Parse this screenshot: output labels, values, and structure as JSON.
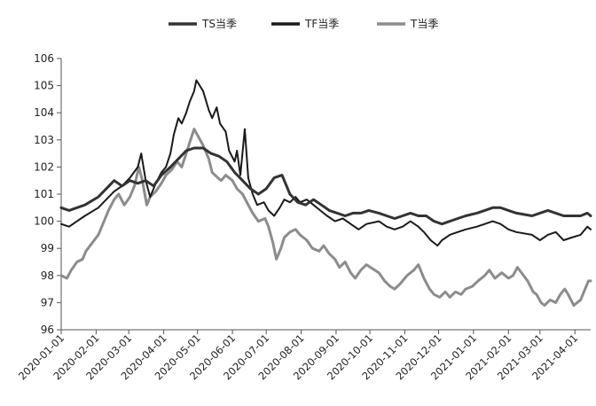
{
  "chart_data": {
    "type": "line",
    "title": "",
    "xlabel": "",
    "ylabel": "",
    "ylim": [
      96,
      106
    ],
    "yticks": [
      96,
      97,
      98,
      99,
      100,
      101,
      102,
      103,
      104,
      105,
      106
    ],
    "xlim": [
      "2020-01-01",
      "2021-04-15"
    ],
    "xticks": [
      "2020-01-01",
      "2020-02-01",
      "2020-03-01",
      "2020-04-01",
      "2020-05-01",
      "2020-06-01",
      "2020-07-01",
      "2020-08-01",
      "2020-09-01",
      "2020-10-01",
      "2020-11-01",
      "2020-12-01",
      "2021-01-01",
      "2021-02-01",
      "2021-03-01",
      "2021-04-01"
    ],
    "grid": false,
    "legend_position": "top",
    "series": [
      {
        "name": "TS当季",
        "color": "#333333",
        "width": 3,
        "points": [
          [
            "2020-01-01",
            100.5
          ],
          [
            "2020-01-08",
            100.4
          ],
          [
            "2020-01-15",
            100.5
          ],
          [
            "2020-01-22",
            100.6
          ],
          [
            "2020-02-03",
            100.9
          ],
          [
            "2020-02-10",
            101.2
          ],
          [
            "2020-02-17",
            101.5
          ],
          [
            "2020-02-24",
            101.3
          ],
          [
            "2020-03-02",
            101.5
          ],
          [
            "2020-03-09",
            101.4
          ],
          [
            "2020-03-16",
            101.5
          ],
          [
            "2020-03-23",
            101.3
          ],
          [
            "2020-03-30",
            101.7
          ],
          [
            "2020-04-07",
            102.0
          ],
          [
            "2020-04-14",
            102.3
          ],
          [
            "2020-04-21",
            102.6
          ],
          [
            "2020-04-28",
            102.7
          ],
          [
            "2020-05-06",
            102.7
          ],
          [
            "2020-05-13",
            102.5
          ],
          [
            "2020-05-20",
            102.4
          ],
          [
            "2020-05-27",
            102.2
          ],
          [
            "2020-06-03",
            101.8
          ],
          [
            "2020-06-10",
            101.5
          ],
          [
            "2020-06-17",
            101.2
          ],
          [
            "2020-06-24",
            101.0
          ],
          [
            "2020-07-01",
            101.2
          ],
          [
            "2020-07-08",
            101.6
          ],
          [
            "2020-07-15",
            101.7
          ],
          [
            "2020-07-22",
            101.0
          ],
          [
            "2020-07-29",
            100.7
          ],
          [
            "2020-08-05",
            100.6
          ],
          [
            "2020-08-12",
            100.8
          ],
          [
            "2020-08-19",
            100.6
          ],
          [
            "2020-08-26",
            100.4
          ],
          [
            "2020-09-02",
            100.3
          ],
          [
            "2020-09-09",
            100.2
          ],
          [
            "2020-09-16",
            100.3
          ],
          [
            "2020-09-23",
            100.3
          ],
          [
            "2020-09-30",
            100.4
          ],
          [
            "2020-10-09",
            100.3
          ],
          [
            "2020-10-16",
            100.2
          ],
          [
            "2020-10-23",
            100.1
          ],
          [
            "2020-10-30",
            100.2
          ],
          [
            "2020-11-06",
            100.3
          ],
          [
            "2020-11-13",
            100.2
          ],
          [
            "2020-11-20",
            100.2
          ],
          [
            "2020-11-27",
            100.0
          ],
          [
            "2020-12-04",
            99.9
          ],
          [
            "2020-12-11",
            100.0
          ],
          [
            "2020-12-18",
            100.1
          ],
          [
            "2020-12-25",
            100.2
          ],
          [
            "2021-01-04",
            100.3
          ],
          [
            "2021-01-11",
            100.4
          ],
          [
            "2021-01-18",
            100.5
          ],
          [
            "2021-01-25",
            100.5
          ],
          [
            "2021-02-01",
            100.4
          ],
          [
            "2021-02-08",
            100.3
          ],
          [
            "2021-02-22",
            100.2
          ],
          [
            "2021-03-01",
            100.3
          ],
          [
            "2021-03-08",
            100.4
          ],
          [
            "2021-03-15",
            100.3
          ],
          [
            "2021-03-22",
            100.2
          ],
          [
            "2021-03-29",
            100.2
          ],
          [
            "2021-04-06",
            100.2
          ],
          [
            "2021-04-12",
            100.3
          ],
          [
            "2021-04-15",
            100.2
          ]
        ]
      },
      {
        "name": "TF当季",
        "color": "#1a1a1a",
        "width": 2,
        "points": [
          [
            "2020-01-01",
            99.9
          ],
          [
            "2020-01-08",
            99.8
          ],
          [
            "2020-01-15",
            100.0
          ],
          [
            "2020-01-22",
            100.2
          ],
          [
            "2020-02-03",
            100.5
          ],
          [
            "2020-02-10",
            100.8
          ],
          [
            "2020-02-17",
            101.1
          ],
          [
            "2020-02-24",
            101.3
          ],
          [
            "2020-03-02",
            101.6
          ],
          [
            "2020-03-09",
            102.0
          ],
          [
            "2020-03-12",
            102.5
          ],
          [
            "2020-03-16",
            101.5
          ],
          [
            "2020-03-20",
            100.9
          ],
          [
            "2020-03-25",
            101.4
          ],
          [
            "2020-03-30",
            101.8
          ],
          [
            "2020-04-03",
            102.0
          ],
          [
            "2020-04-07",
            102.5
          ],
          [
            "2020-04-10",
            103.2
          ],
          [
            "2020-04-14",
            103.8
          ],
          [
            "2020-04-17",
            103.6
          ],
          [
            "2020-04-21",
            104.0
          ],
          [
            "2020-04-24",
            104.4
          ],
          [
            "2020-04-28",
            104.8
          ],
          [
            "2020-04-30",
            105.2
          ],
          [
            "2020-05-06",
            104.8
          ],
          [
            "2020-05-11",
            104.1
          ],
          [
            "2020-05-14",
            103.8
          ],
          [
            "2020-05-18",
            104.2
          ],
          [
            "2020-05-21",
            103.6
          ],
          [
            "2020-05-26",
            103.3
          ],
          [
            "2020-05-29",
            102.6
          ],
          [
            "2020-06-03",
            102.2
          ],
          [
            "2020-06-05",
            102.6
          ],
          [
            "2020-06-08",
            101.7
          ],
          [
            "2020-06-12",
            103.4
          ],
          [
            "2020-06-15",
            101.6
          ],
          [
            "2020-06-19",
            101.0
          ],
          [
            "2020-06-23",
            100.6
          ],
          [
            "2020-06-29",
            100.7
          ],
          [
            "2020-07-03",
            100.4
          ],
          [
            "2020-07-08",
            100.2
          ],
          [
            "2020-07-13",
            100.5
          ],
          [
            "2020-07-17",
            100.8
          ],
          [
            "2020-07-22",
            100.7
          ],
          [
            "2020-07-27",
            100.9
          ],
          [
            "2020-07-31",
            100.7
          ],
          [
            "2020-08-06",
            100.8
          ],
          [
            "2020-08-12",
            100.6
          ],
          [
            "2020-08-18",
            100.4
          ],
          [
            "2020-08-24",
            100.2
          ],
          [
            "2020-08-31",
            100.0
          ],
          [
            "2020-09-07",
            100.1
          ],
          [
            "2020-09-14",
            99.9
          ],
          [
            "2020-09-21",
            99.7
          ],
          [
            "2020-09-28",
            99.9
          ],
          [
            "2020-10-09",
            100.0
          ],
          [
            "2020-10-16",
            99.8
          ],
          [
            "2020-10-23",
            99.7
          ],
          [
            "2020-10-30",
            99.8
          ],
          [
            "2020-11-06",
            100.0
          ],
          [
            "2020-11-13",
            99.8
          ],
          [
            "2020-11-18",
            99.6
          ],
          [
            "2020-11-24",
            99.3
          ],
          [
            "2020-11-30",
            99.1
          ],
          [
            "2020-12-04",
            99.3
          ],
          [
            "2020-12-11",
            99.5
          ],
          [
            "2020-12-18",
            99.6
          ],
          [
            "2020-12-25",
            99.7
          ],
          [
            "2021-01-04",
            99.8
          ],
          [
            "2021-01-11",
            99.9
          ],
          [
            "2021-01-18",
            100.0
          ],
          [
            "2021-01-25",
            99.9
          ],
          [
            "2021-02-01",
            99.7
          ],
          [
            "2021-02-08",
            99.6
          ],
          [
            "2021-02-22",
            99.5
          ],
          [
            "2021-03-01",
            99.3
          ],
          [
            "2021-03-08",
            99.5
          ],
          [
            "2021-03-15",
            99.6
          ],
          [
            "2021-03-22",
            99.3
          ],
          [
            "2021-03-29",
            99.4
          ],
          [
            "2021-04-06",
            99.5
          ],
          [
            "2021-04-12",
            99.8
          ],
          [
            "2021-04-15",
            99.7
          ]
        ]
      },
      {
        "name": "T当季",
        "color": "#8c8c8c",
        "width": 3,
        "points": [
          [
            "2020-01-01",
            98.0
          ],
          [
            "2020-01-06",
            97.9
          ],
          [
            "2020-01-10",
            98.2
          ],
          [
            "2020-01-15",
            98.5
          ],
          [
            "2020-01-20",
            98.6
          ],
          [
            "2020-01-23",
            98.9
          ],
          [
            "2020-02-03",
            99.5
          ],
          [
            "2020-02-07",
            99.9
          ],
          [
            "2020-02-12",
            100.4
          ],
          [
            "2020-02-17",
            100.8
          ],
          [
            "2020-02-21",
            101.0
          ],
          [
            "2020-02-26",
            100.6
          ],
          [
            "2020-03-02",
            100.9
          ],
          [
            "2020-03-06",
            101.3
          ],
          [
            "2020-03-10",
            102.0
          ],
          [
            "2020-03-13",
            101.5
          ],
          [
            "2020-03-17",
            100.6
          ],
          [
            "2020-03-20",
            100.9
          ],
          [
            "2020-03-25",
            101.1
          ],
          [
            "2020-03-30",
            101.4
          ],
          [
            "2020-04-03",
            101.7
          ],
          [
            "2020-04-08",
            101.9
          ],
          [
            "2020-04-13",
            102.2
          ],
          [
            "2020-04-17",
            102.0
          ],
          [
            "2020-04-21",
            102.5
          ],
          [
            "2020-04-24",
            102.9
          ],
          [
            "2020-04-28",
            103.4
          ],
          [
            "2020-05-06",
            102.8
          ],
          [
            "2020-05-11",
            102.3
          ],
          [
            "2020-05-14",
            101.8
          ],
          [
            "2020-05-19",
            101.6
          ],
          [
            "2020-05-22",
            101.5
          ],
          [
            "2020-05-26",
            101.7
          ],
          [
            "2020-06-01",
            101.5
          ],
          [
            "2020-06-05",
            101.2
          ],
          [
            "2020-06-10",
            101.0
          ],
          [
            "2020-06-15",
            100.6
          ],
          [
            "2020-06-19",
            100.3
          ],
          [
            "2020-06-24",
            100.0
          ],
          [
            "2020-06-30",
            100.1
          ],
          [
            "2020-07-03",
            99.8
          ],
          [
            "2020-07-07",
            99.2
          ],
          [
            "2020-07-10",
            98.6
          ],
          [
            "2020-07-14",
            99.0
          ],
          [
            "2020-07-17",
            99.4
          ],
          [
            "2020-07-22",
            99.6
          ],
          [
            "2020-07-27",
            99.7
          ],
          [
            "2020-07-31",
            99.5
          ],
          [
            "2020-08-06",
            99.3
          ],
          [
            "2020-08-11",
            99.0
          ],
          [
            "2020-08-17",
            98.9
          ],
          [
            "2020-08-21",
            99.1
          ],
          [
            "2020-08-26",
            98.8
          ],
          [
            "2020-08-31",
            98.6
          ],
          [
            "2020-09-04",
            98.3
          ],
          [
            "2020-09-09",
            98.5
          ],
          [
            "2020-09-14",
            98.1
          ],
          [
            "2020-09-18",
            97.9
          ],
          [
            "2020-09-23",
            98.2
          ],
          [
            "2020-09-28",
            98.4
          ],
          [
            "2020-10-09",
            98.1
          ],
          [
            "2020-10-14",
            97.8
          ],
          [
            "2020-10-19",
            97.6
          ],
          [
            "2020-10-23",
            97.5
          ],
          [
            "2020-10-28",
            97.7
          ],
          [
            "2020-11-03",
            98.0
          ],
          [
            "2020-11-09",
            98.2
          ],
          [
            "2020-11-13",
            98.4
          ],
          [
            "2020-11-18",
            97.9
          ],
          [
            "2020-11-23",
            97.5
          ],
          [
            "2020-11-27",
            97.3
          ],
          [
            "2020-12-02",
            97.2
          ],
          [
            "2020-12-07",
            97.4
          ],
          [
            "2020-12-11",
            97.2
          ],
          [
            "2020-12-16",
            97.4
          ],
          [
            "2020-12-21",
            97.3
          ],
          [
            "2020-12-25",
            97.5
          ],
          [
            "2020-12-31",
            97.6
          ],
          [
            "2021-01-05",
            97.8
          ],
          [
            "2021-01-11",
            98.0
          ],
          [
            "2021-01-15",
            98.2
          ],
          [
            "2021-01-20",
            97.9
          ],
          [
            "2021-01-26",
            98.1
          ],
          [
            "2021-02-01",
            97.9
          ],
          [
            "2021-02-05",
            98.0
          ],
          [
            "2021-02-09",
            98.3
          ],
          [
            "2021-02-18",
            97.8
          ],
          [
            "2021-02-23",
            97.4
          ],
          [
            "2021-02-26",
            97.3
          ],
          [
            "2021-03-02",
            97.0
          ],
          [
            "2021-03-05",
            96.9
          ],
          [
            "2021-03-10",
            97.1
          ],
          [
            "2021-03-15",
            97.0
          ],
          [
            "2021-03-19",
            97.3
          ],
          [
            "2021-03-23",
            97.5
          ],
          [
            "2021-03-26",
            97.3
          ],
          [
            "2021-03-31",
            96.9
          ],
          [
            "2021-04-06",
            97.1
          ],
          [
            "2021-04-09",
            97.4
          ],
          [
            "2021-04-13",
            97.8
          ],
          [
            "2021-04-15",
            97.8
          ]
        ]
      }
    ]
  }
}
